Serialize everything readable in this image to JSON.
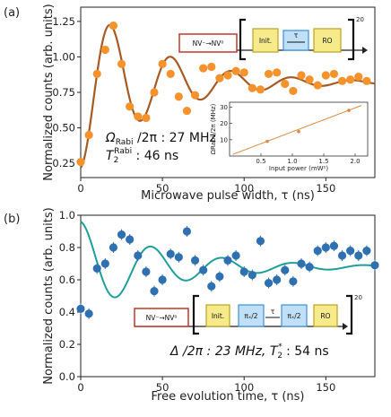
{
  "colors": {
    "a_points": "#f5922b",
    "a_fit": "#a65a24",
    "b_points": "#2e70b0",
    "b_fit": "#1f9e9a",
    "inset": "#d98a40",
    "nv_box": "#c0392b",
    "init_box": "#e6d23c",
    "tau_box": "#3b8fd6",
    "ro_box": "#e6d23c",
    "pi_box": "#3b8fd6"
  },
  "chart_data": [
    {
      "panel": "(a)",
      "type": "scatter",
      "xlabel": "Microwave pulse width, τ (ns)",
      "ylabel": "Normalized counts (arb. units)",
      "xlim": [
        0,
        180
      ],
      "ylim": [
        0.15,
        1.35
      ],
      "xticks": [
        0,
        50,
        100,
        150
      ],
      "yticks": [
        0.25,
        0.5,
        0.75,
        1.0,
        1.25
      ],
      "ytick_labels": [
        "0.25",
        "0.50",
        "0.75",
        "1.00",
        "1.25"
      ],
      "points": {
        "x": [
          0,
          5,
          10,
          15,
          20,
          25,
          30,
          35,
          40,
          45,
          50,
          55,
          60,
          65,
          70,
          75,
          80,
          85,
          90,
          95,
          100,
          105,
          110,
          115,
          120,
          125,
          130,
          135,
          140,
          145,
          150,
          155,
          160,
          165,
          170,
          175
        ],
        "y": [
          0.26,
          0.45,
          0.88,
          1.05,
          1.22,
          0.95,
          0.65,
          0.58,
          0.57,
          0.75,
          0.95,
          0.88,
          0.72,
          0.62,
          0.73,
          0.92,
          0.93,
          0.85,
          0.87,
          0.9,
          0.89,
          0.78,
          0.77,
          0.88,
          0.89,
          0.81,
          0.76,
          0.87,
          0.84,
          0.8,
          0.87,
          0.88,
          0.83,
          0.84,
          0.86,
          0.83
        ]
      },
      "fit": {
        "mean": 0.82,
        "amp": 0.6,
        "period_ns": 37,
        "decay_ns": 46
      },
      "annotation_line1": "Ω",
      "annotation_sub1": "Rabi",
      "annotation_rest1": " /2π : 27 MHz",
      "annotation_line2": "T",
      "annotation_sub2": "2",
      "annotation_sup2": "Rabi",
      "annotation_rest2": " : 46 ns",
      "sequence": {
        "nv": "NV⁻→NV⁰",
        "init": "Init.",
        "tau": "τ",
        "ro": "RO",
        "repeat": "20"
      },
      "inset": {
        "xlabel": "Input power (mW²)",
        "ylabel": "ΩRabi /2π (MHz)",
        "xticks": [
          "0.5",
          "1.0",
          "1.5",
          "2.0"
        ],
        "yticks": [
          "10",
          "20",
          "30"
        ],
        "xtick_values": [
          0.5,
          1.0,
          1.5,
          2.0
        ],
        "ytick_values": [
          10,
          20,
          30
        ],
        "xlim": [
          0,
          2.2
        ],
        "ylim": [
          0,
          33
        ],
        "x": [
          0.6,
          1.1,
          1.9
        ],
        "y": [
          9,
          15,
          28
        ]
      }
    },
    {
      "panel": "(b)",
      "type": "scatter",
      "xlabel": "Free evolution time, τ (ns)",
      "ylabel": "Normalized counts (arb. units)",
      "xlim": [
        0,
        180
      ],
      "ylim": [
        0.0,
        1.0
      ],
      "xticks": [
        0,
        50,
        100,
        150
      ],
      "yticks": [
        0.0,
        0.2,
        0.4,
        0.6,
        0.8,
        1.0
      ],
      "ytick_labels": [
        "0.0",
        "0.2",
        "0.4",
        "0.6",
        "0.8",
        "1.0"
      ],
      "points": {
        "x": [
          0,
          5,
          10,
          15,
          20,
          25,
          30,
          35,
          40,
          45,
          50,
          55,
          60,
          65,
          70,
          75,
          80,
          85,
          90,
          95,
          100,
          105,
          110,
          115,
          120,
          125,
          130,
          135,
          140,
          145,
          150,
          155,
          160,
          165,
          170,
          175,
          180
        ],
        "y": [
          0.42,
          0.39,
          0.67,
          0.7,
          0.8,
          0.88,
          0.85,
          0.75,
          0.65,
          0.53,
          0.6,
          0.76,
          0.74,
          0.9,
          0.72,
          0.66,
          0.56,
          0.62,
          0.72,
          0.75,
          0.65,
          0.63,
          0.84,
          0.58,
          0.6,
          0.66,
          0.59,
          0.7,
          0.68,
          0.78,
          0.8,
          0.81,
          0.75,
          0.78,
          0.75,
          0.78,
          0.69
        ]
      },
      "fit": {
        "mean": 0.68,
        "amp": -0.28,
        "period_ns": 43.5,
        "decay_ns": 54
      },
      "annotation_line1": "Δ /2π : 23 MHz, ",
      "annotation_line2": "T",
      "annotation_sub2": "2",
      "annotation_sup2": "*",
      "annotation_rest2": " : 54 ns",
      "sequence": {
        "nv": "NV⁻→NV⁰",
        "init": "Init.",
        "pi1": "πₓ/2",
        "tau": "τ",
        "pi2": "πₓ/2",
        "ro": "RO",
        "repeat": "20"
      }
    }
  ]
}
